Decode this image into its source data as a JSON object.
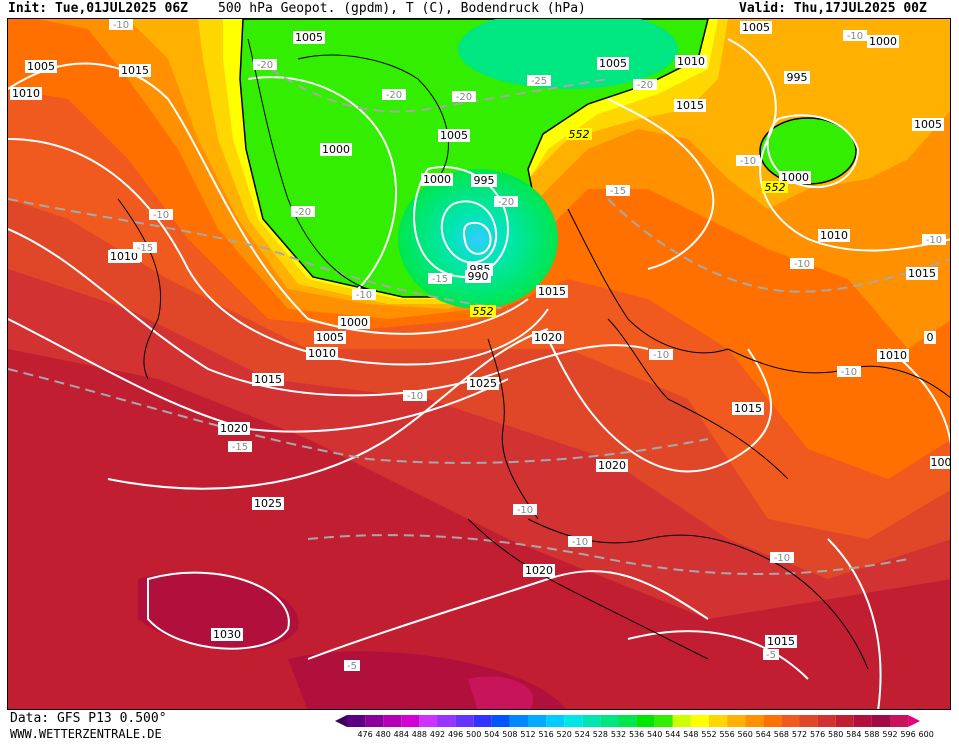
{
  "header": {
    "init": "Init: Tue,01JUL2025 06Z",
    "title": "500 hPa Geopot. (gpdm), T (C), Bodendruck (hPa)",
    "valid": "Valid: Thu,17JUL2025 00Z"
  },
  "footer": {
    "source": "Data: GFS P13 0.500°",
    "website": "WWW.WETTERZENTRALE.DE"
  },
  "legend": {
    "levels": [
      "476",
      "480",
      "484",
      "488",
      "492",
      "496",
      "500",
      "504",
      "508",
      "512",
      "516",
      "520",
      "524",
      "528",
      "532",
      "536",
      "540",
      "544",
      "548",
      "552",
      "556",
      "560",
      "564",
      "568",
      "572",
      "576",
      "580",
      "584",
      "588",
      "592",
      "596",
      "600"
    ],
    "colors": [
      "#3d0061",
      "#5a0080",
      "#8a009c",
      "#b300b3",
      "#d400d4",
      "#cc33ff",
      "#9933ff",
      "#6633ff",
      "#3333ff",
      "#0055ff",
      "#0088ff",
      "#00aaff",
      "#00ccff",
      "#00e6e6",
      "#00e6b3",
      "#00e680",
      "#00e64d",
      "#00e600",
      "#33ee00",
      "#ccff00",
      "#ffff00",
      "#ffd700",
      "#ffb000",
      "#ff9000",
      "#ff7000",
      "#f05a1e",
      "#e04628",
      "#d23232",
      "#c21e32",
      "#b2103c",
      "#a00a46",
      "#c8145a",
      "#e6007e"
    ]
  },
  "map": {
    "pressure_labels": [
      {
        "text": "1005",
        "id": "p1005-a"
      },
      {
        "text": "1015",
        "id": "p1015-a"
      },
      {
        "text": "1010",
        "id": "p1010-a"
      },
      {
        "text": "1005",
        "id": "p1005-b"
      },
      {
        "text": "1000",
        "id": "p1000-a"
      },
      {
        "text": "1005",
        "id": "p1005-c"
      },
      {
        "text": "1000",
        "id": "p1000-b"
      },
      {
        "text": "995",
        "id": "p995-a"
      },
      {
        "text": "985",
        "id": "p985"
      },
      {
        "text": "990",
        "id": "p990"
      },
      {
        "text": "1005",
        "id": "p1005-d"
      },
      {
        "text": "1010",
        "id": "p1010-b"
      },
      {
        "text": "1015",
        "id": "p1015-b"
      },
      {
        "text": "1005",
        "id": "p1005-e"
      },
      {
        "text": "1000",
        "id": "p1000-c"
      },
      {
        "text": "995",
        "id": "p995-b"
      },
      {
        "text": "1005",
        "id": "p1005-f"
      },
      {
        "text": "1000",
        "id": "p1000-d"
      },
      {
        "text": "1010",
        "id": "p1010-c"
      },
      {
        "text": "1015",
        "id": "p1015-c"
      },
      {
        "text": "1010",
        "id": "p1010-d"
      },
      {
        "text": "1015",
        "id": "p1015-d"
      },
      {
        "text": "1010",
        "id": "p1010-e"
      },
      {
        "text": "1000",
        "id": "p1000-e"
      },
      {
        "text": "1005",
        "id": "p1005-g"
      },
      {
        "text": "1010",
        "id": "p1010-f"
      },
      {
        "text": "1015",
        "id": "p1015-e"
      },
      {
        "text": "1020",
        "id": "p1020-a"
      },
      {
        "text": "1025",
        "id": "p1025-a"
      },
      {
        "text": "1020",
        "id": "p1020-b"
      },
      {
        "text": "1015",
        "id": "p1015-f"
      },
      {
        "text": "1020",
        "id": "p1020-c"
      },
      {
        "text": "1025",
        "id": "p1025-b"
      },
      {
        "text": "1020",
        "id": "p1020-d"
      },
      {
        "text": "1030",
        "id": "p1030"
      },
      {
        "text": "1015",
        "id": "p1015-g"
      },
      {
        "text": "100",
        "id": "p100"
      },
      {
        "text": "0",
        "id": "p0"
      },
      {
        "text": "1010",
        "id": "p1010-g"
      }
    ],
    "temperature_labels": [
      "-10",
      "-20",
      "-20",
      "-20",
      "-25",
      "-20",
      "-20",
      "-20",
      "-15",
      "-10",
      "-10",
      "-15",
      "-15",
      "-10",
      "-10",
      "-10",
      "-10",
      "-10",
      "-10",
      "-10",
      "-15",
      "-10",
      "-10",
      "-5",
      "-5",
      "-10"
    ],
    "geopotential_labels": [
      "552",
      "552",
      "552"
    ]
  }
}
